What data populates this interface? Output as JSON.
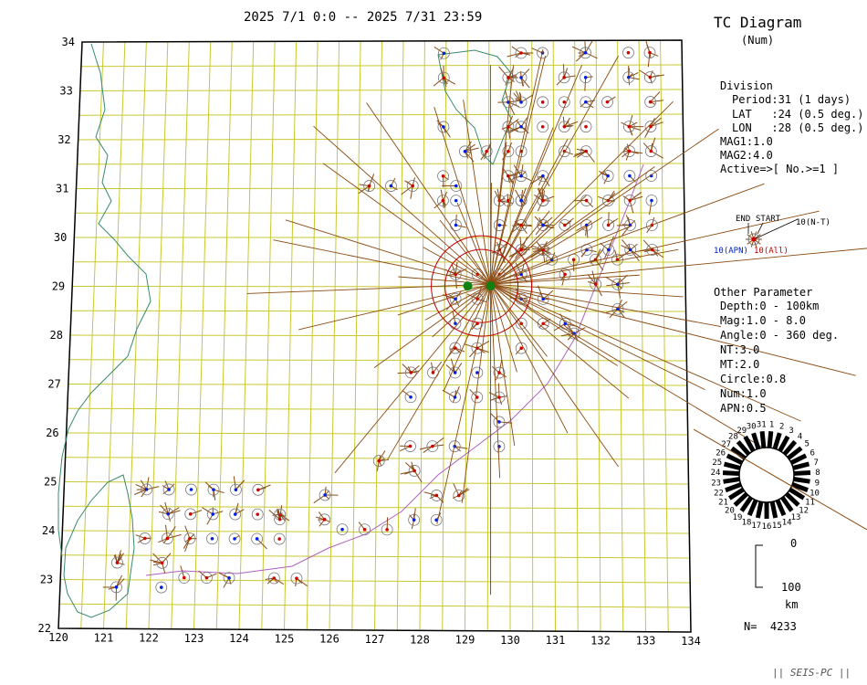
{
  "header": {
    "period_range": "2025 7/1 0:0 -- 2025 7/31 23:59"
  },
  "panel": {
    "title": "TC Diagram",
    "subtitle": "(Num)",
    "division_heading": "Division",
    "period": "Period:31 (1 days)",
    "lat": "LAT   :24 (0.5 deg.)",
    "lon": "LON   :28 (0.5 deg.)",
    "mag1": "MAG1:1.0",
    "mag2": "MAG2:4.0",
    "active": "Active=>[ No.>=1 ]",
    "legend_end": "END",
    "legend_start": "START",
    "legend_nt": "10(N-T)",
    "legend_apn": "10(APN)",
    "legend_all": "10(All)",
    "other_heading": "Other Parameter",
    "depth": "Depth:0 - 100km",
    "mag": "Mag:1.0 - 8.0",
    "angle": "Angle:0 - 360 deg.",
    "nt": "NT:3.0",
    "mt": "MT:2.0",
    "circle": "Circle:0.8",
    "num": "Num:1.0",
    "apn": "APN:0.5",
    "scale_top": "0",
    "scale_bottom": "100",
    "scale_unit": "km",
    "total": "N=  4233",
    "footer": "|| SEIS-PC ||",
    "rose_labels": [
      "1",
      "2",
      "3",
      "4",
      "5",
      "6",
      "7",
      "8",
      "9",
      "10",
      "11",
      "12",
      "13",
      "14",
      "15",
      "16",
      "17",
      "18",
      "19",
      "20",
      "21",
      "22",
      "23",
      "24",
      "25",
      "26",
      "27",
      "28",
      "29",
      "30",
      "31"
    ]
  },
  "map": {
    "lat_labels": [
      "22",
      "23",
      "24",
      "25",
      "26",
      "27",
      "28",
      "29",
      "30",
      "31",
      "32",
      "33",
      "34"
    ],
    "lon_labels": [
      "120",
      "121",
      "122",
      "123",
      "124",
      "125",
      "126",
      "127",
      "128",
      "129",
      "130",
      "131",
      "132",
      "133",
      "134"
    ],
    "colors": {
      "grid": "#c8c832",
      "coast": "#3a8a6a",
      "trench": "#b060c0",
      "tail": "#8a4a10",
      "ring": "#c00000",
      "dot_blue": "#0020e0",
      "dot_green": "#108010"
    }
  }
}
